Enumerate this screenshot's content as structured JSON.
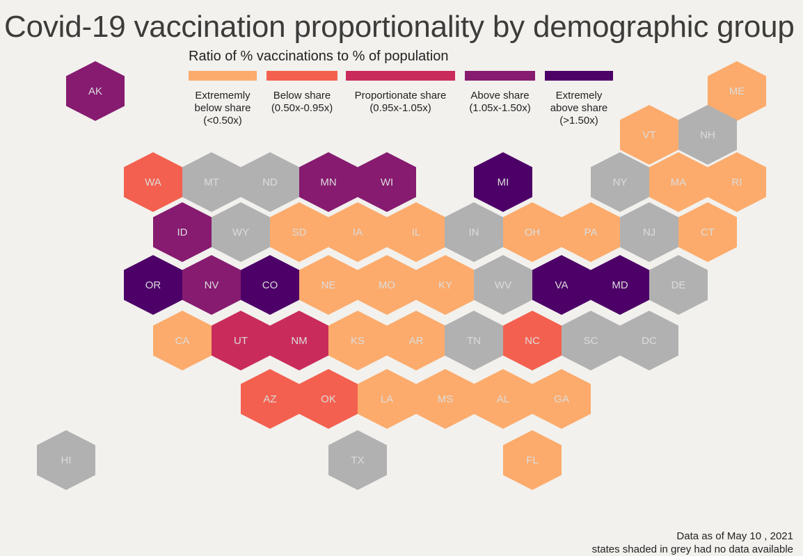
{
  "title": "Covid-19 vaccination proportionality by demographic group",
  "legend": {
    "title": "Ratio of % vaccinations to % of population",
    "items": [
      {
        "label": "Extrememly\nbelow share\n(<0.50x)",
        "color": "#fcab6c"
      },
      {
        "label": "Below share\n(0.50x-0.95x)",
        "color": "#f4604f"
      },
      {
        "label": "Proportionate share\n(0.95x-1.05x)",
        "color": "#c92c5b"
      },
      {
        "label": "Above share\n(1.05x-1.50x)",
        "color": "#861b70"
      },
      {
        "label": "Extremely\nabove share\n(>1.50x)",
        "color": "#4d0068"
      }
    ]
  },
  "no_data_color": "#b1b1b1",
  "label_color": "#dcdcdc",
  "chart_data": {
    "type": "hex-tile-map",
    "categories": [
      "Extrememly below share (<0.50x)",
      "Below share (0.50x-0.95x)",
      "Proportionate share (0.95x-1.05x)",
      "Above share (1.05x-1.50x)",
      "Extremely above share (>1.50x)",
      "no data"
    ],
    "states": [
      {
        "abbr": "AK",
        "category": 3
      },
      {
        "abbr": "ME",
        "category": 0
      },
      {
        "abbr": "VT",
        "category": 0
      },
      {
        "abbr": "NH",
        "category": 5
      },
      {
        "abbr": "WA",
        "category": 1
      },
      {
        "abbr": "MT",
        "category": 5
      },
      {
        "abbr": "ND",
        "category": 5
      },
      {
        "abbr": "MN",
        "category": 3
      },
      {
        "abbr": "WI",
        "category": 3
      },
      {
        "abbr": "MI",
        "category": 4
      },
      {
        "abbr": "NY",
        "category": 5
      },
      {
        "abbr": "MA",
        "category": 0
      },
      {
        "abbr": "RI",
        "category": 0
      },
      {
        "abbr": "ID",
        "category": 3
      },
      {
        "abbr": "WY",
        "category": 5
      },
      {
        "abbr": "SD",
        "category": 0
      },
      {
        "abbr": "IA",
        "category": 0
      },
      {
        "abbr": "IL",
        "category": 0
      },
      {
        "abbr": "IN",
        "category": 5
      },
      {
        "abbr": "OH",
        "category": 0
      },
      {
        "abbr": "PA",
        "category": 0
      },
      {
        "abbr": "NJ",
        "category": 5
      },
      {
        "abbr": "CT",
        "category": 0
      },
      {
        "abbr": "OR",
        "category": 4
      },
      {
        "abbr": "NV",
        "category": 3
      },
      {
        "abbr": "CO",
        "category": 4
      },
      {
        "abbr": "NE",
        "category": 0
      },
      {
        "abbr": "MO",
        "category": 0
      },
      {
        "abbr": "KY",
        "category": 0
      },
      {
        "abbr": "WV",
        "category": 5
      },
      {
        "abbr": "VA",
        "category": 4
      },
      {
        "abbr": "MD",
        "category": 4
      },
      {
        "abbr": "DE",
        "category": 5
      },
      {
        "abbr": "CA",
        "category": 0
      },
      {
        "abbr": "UT",
        "category": 2
      },
      {
        "abbr": "NM",
        "category": 2
      },
      {
        "abbr": "KS",
        "category": 0
      },
      {
        "abbr": "AR",
        "category": 0
      },
      {
        "abbr": "TN",
        "category": 5
      },
      {
        "abbr": "NC",
        "category": 1
      },
      {
        "abbr": "SC",
        "category": 5
      },
      {
        "abbr": "DC",
        "category": 5
      },
      {
        "abbr": "AZ",
        "category": 1
      },
      {
        "abbr": "OK",
        "category": 1
      },
      {
        "abbr": "LA",
        "category": 0
      },
      {
        "abbr": "MS",
        "category": 0
      },
      {
        "abbr": "AL",
        "category": 0
      },
      {
        "abbr": "GA",
        "category": 0
      },
      {
        "abbr": "HI",
        "category": 5
      },
      {
        "abbr": "TX",
        "category": 5
      },
      {
        "abbr": "FL",
        "category": 0
      }
    ]
  },
  "caption": {
    "line1": "Data as of May 10 , 2021",
    "line2": "states shaded in grey had no data available"
  }
}
